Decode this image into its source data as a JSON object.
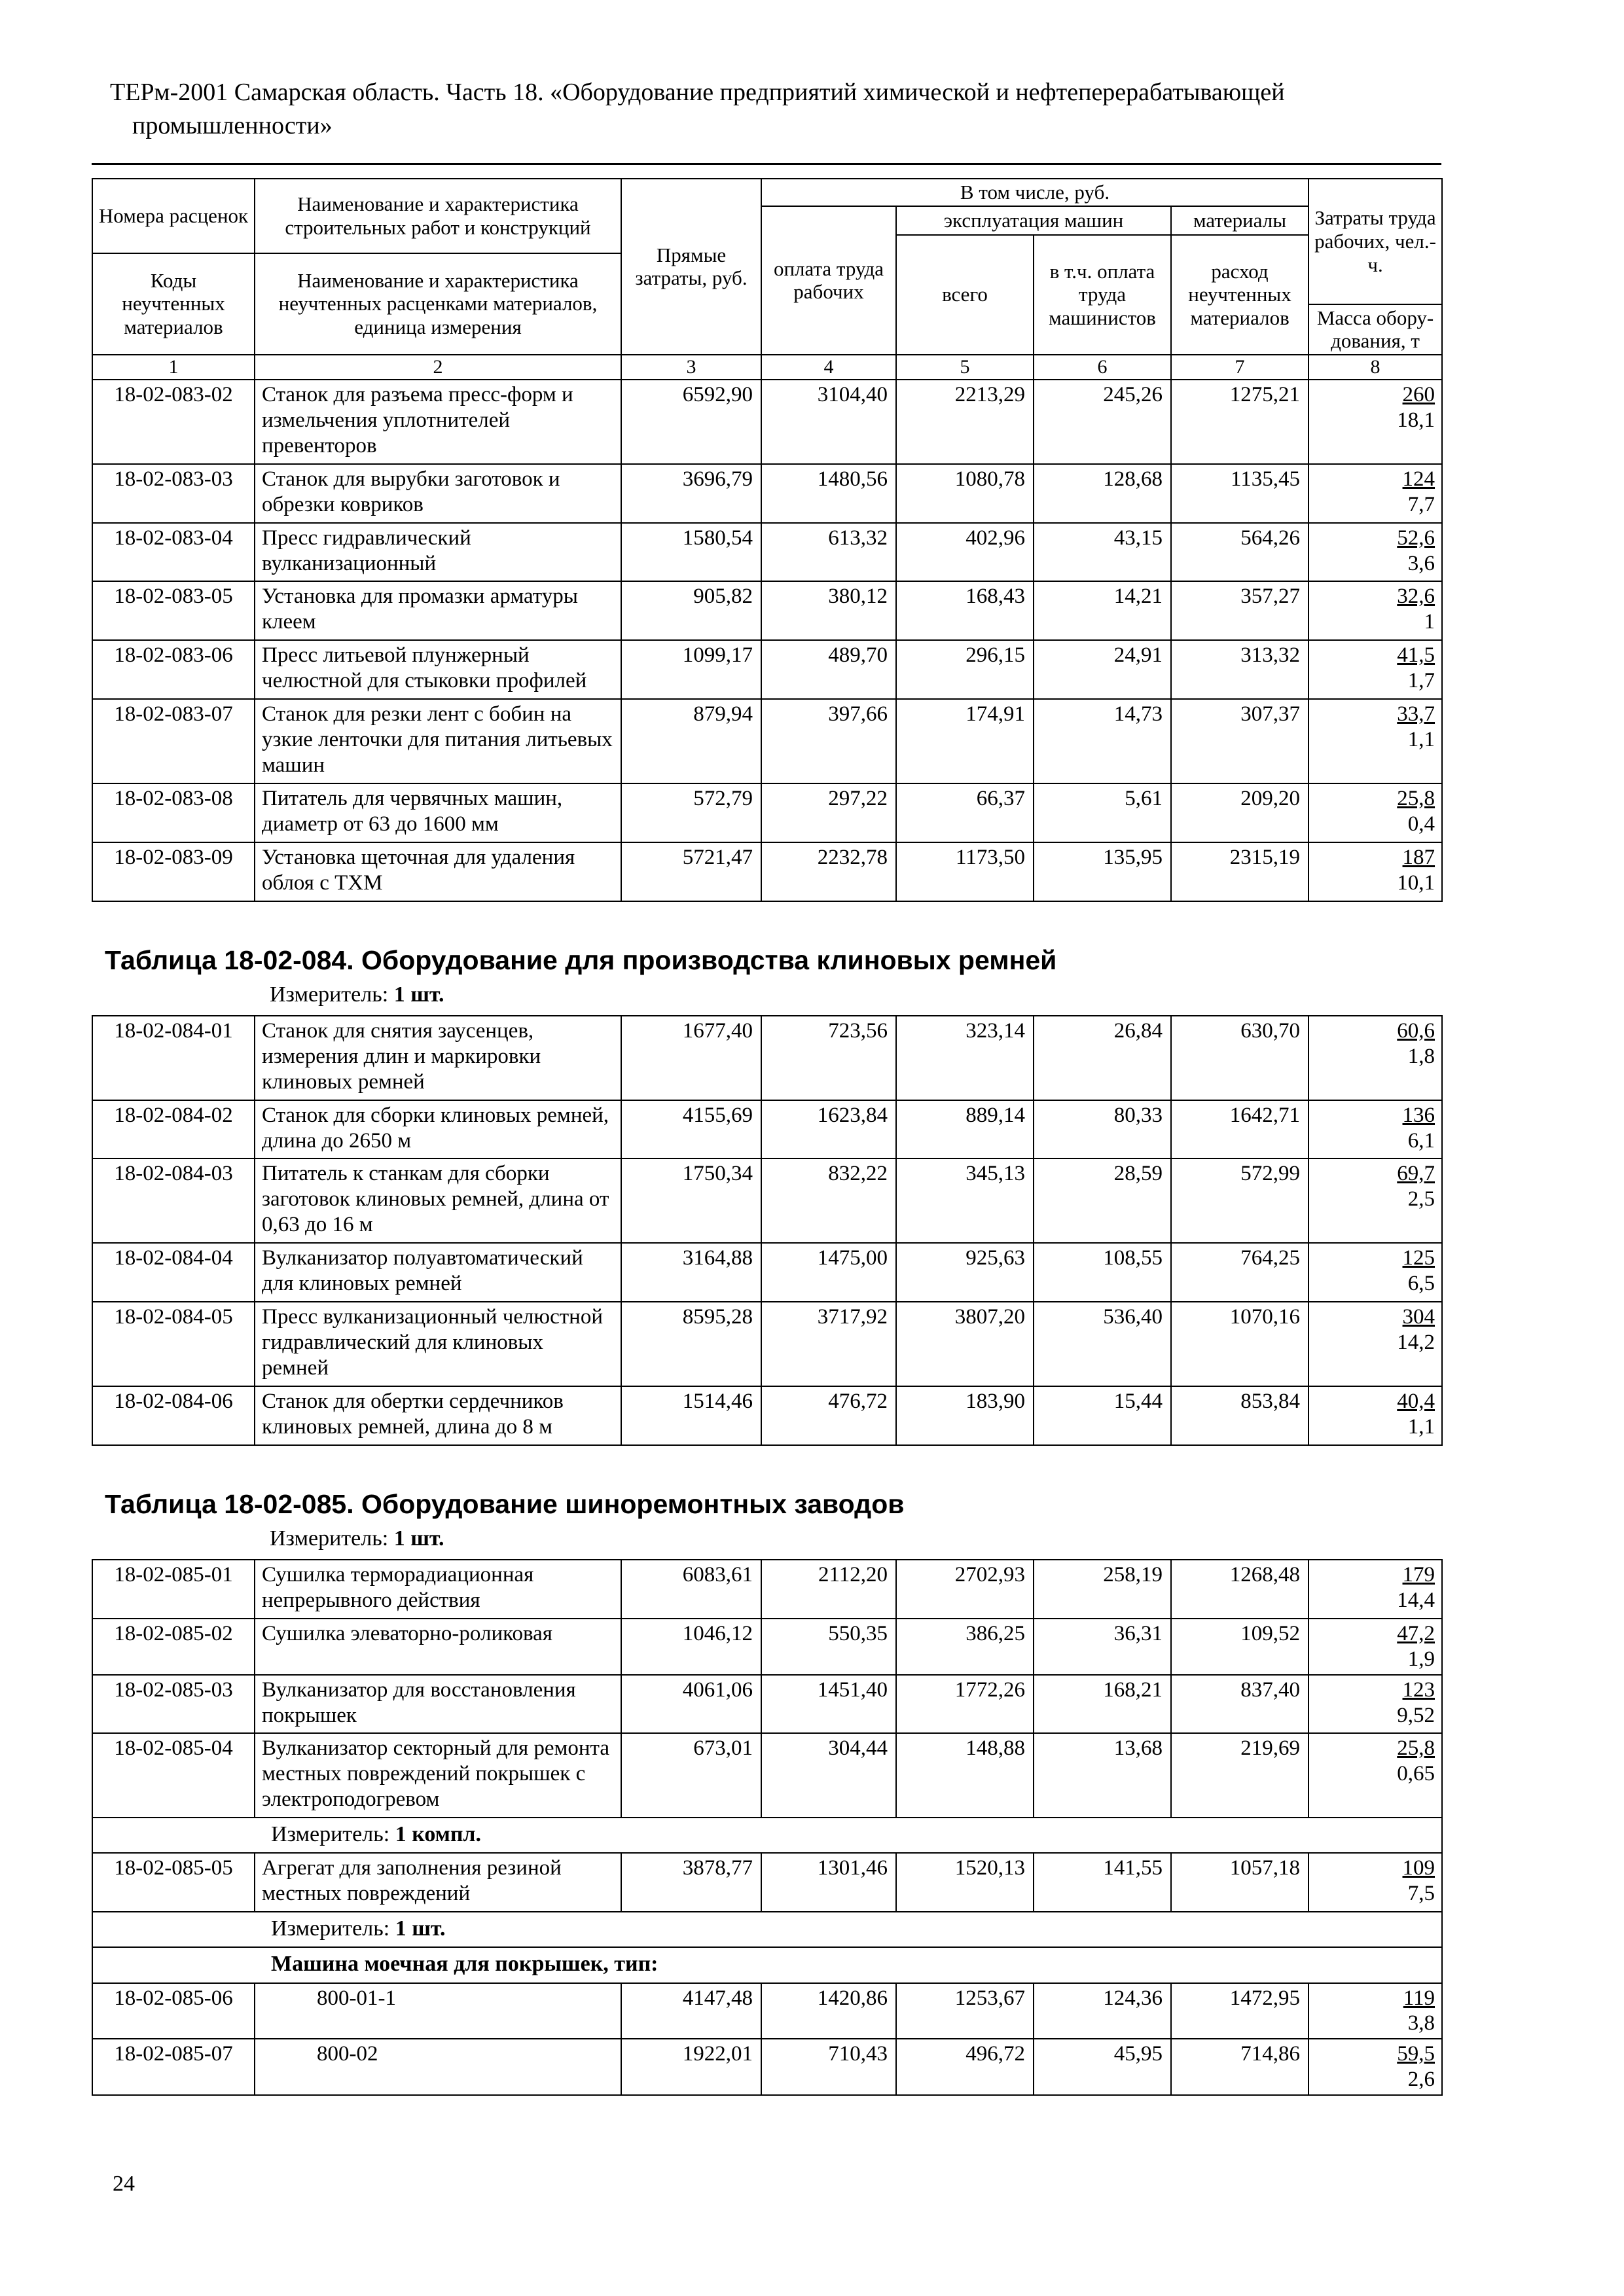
{
  "doc_header": {
    "line1": "ТЕРм-2001 Самарская область. Часть 18. «Оборудование предприятий химической и нефтеперерабатывающей",
    "line2": "промышленности»"
  },
  "page_number": "24",
  "columns": {
    "col1_top": "Номера расценок",
    "col1_bottom": "Коды неучтенных материалов",
    "col2_top": "Наименование и характеристика строительных работ и конструкций",
    "col2_bottom": "Наименование и характеристика неучтенных расценками материалов, единица измерения",
    "col3": "Прямые затраты, руб.",
    "group_total": "В том числе, руб.",
    "col4": "оплата труда рабочих",
    "group_machines": "эксплуатация машин",
    "col5": "всего",
    "col6": "в т.ч. оплата труда машинистов",
    "group_materials": "материалы",
    "col7": "расход неучтенных материалов",
    "col8_top": "Затраты труда рабочих, чел.-ч.",
    "col8_bottom": "Масса обору-дования, т",
    "numbers": [
      "1",
      "2",
      "3",
      "4",
      "5",
      "6",
      "7",
      "8"
    ]
  },
  "tables": [
    {
      "id": "t083",
      "rows": [
        {
          "type": "data",
          "code": "18-02-083-02",
          "name": "Станок для разъема пресс-форм и измельчения уплотнителей превенторов",
          "direct": "6592,90",
          "labor_pay": "3104,40",
          "machines_total": "2213,29",
          "machinists_pay": "245,26",
          "materials": "1275,21",
          "labor_hours": "260",
          "mass": "18,1"
        },
        {
          "type": "data",
          "code": "18-02-083-03",
          "name": "Станок для вырубки заготовок и обрезки ковриков",
          "direct": "3696,79",
          "labor_pay": "1480,56",
          "machines_total": "1080,78",
          "machinists_pay": "128,68",
          "materials": "1135,45",
          "labor_hours": "124",
          "mass": "7,7"
        },
        {
          "type": "data",
          "code": "18-02-083-04",
          "name": "Пресс гидравлический вулканизационный",
          "direct": "1580,54",
          "labor_pay": "613,32",
          "machines_total": "402,96",
          "machinists_pay": "43,15",
          "materials": "564,26",
          "labor_hours": "52,6",
          "mass": "3,6"
        },
        {
          "type": "data",
          "code": "18-02-083-05",
          "name": "Установка для промазки арматуры клеем",
          "direct": "905,82",
          "labor_pay": "380,12",
          "machines_total": "168,43",
          "machinists_pay": "14,21",
          "materials": "357,27",
          "labor_hours": "32,6",
          "mass": "1"
        },
        {
          "type": "data",
          "code": "18-02-083-06",
          "name": "Пресс литьевой плунжерный челюстной для стыковки профилей",
          "direct": "1099,17",
          "labor_pay": "489,70",
          "machines_total": "296,15",
          "machinists_pay": "24,91",
          "materials": "313,32",
          "labor_hours": "41,5",
          "mass": "1,7"
        },
        {
          "type": "data",
          "code": "18-02-083-07",
          "name": "Станок для резки лент с бобин на узкие ленточки для питания литьевых машин",
          "direct": "879,94",
          "labor_pay": "397,66",
          "machines_total": "174,91",
          "machinists_pay": "14,73",
          "materials": "307,37",
          "labor_hours": "33,7",
          "mass": "1,1"
        },
        {
          "type": "data",
          "code": "18-02-083-08",
          "name": "Питатель для червячных машин, диаметр от 63 до 1600 мм",
          "direct": "572,79",
          "labor_pay": "297,22",
          "machines_total": "66,37",
          "machinists_pay": "5,61",
          "materials": "209,20",
          "labor_hours": "25,8",
          "mass": "0,4"
        },
        {
          "type": "data",
          "code": "18-02-083-09",
          "name": "Установка щеточная для удаления облоя с ТХМ",
          "direct": "5721,47",
          "labor_pay": "2232,78",
          "machines_total": "1173,50",
          "machinists_pay": "135,95",
          "materials": "2315,19",
          "labor_hours": "187",
          "mass": "10,1"
        }
      ]
    },
    {
      "id": "t084",
      "title": "Таблица 18-02-084. Оборудование для производства клиновых ремней",
      "measurer_label": "Измеритель:",
      "measurer_value": "1 шт.",
      "rows": [
        {
          "type": "data",
          "code": "18-02-084-01",
          "name": "Станок для снятия заусенцев, измерения длин и маркировки клиновых ремней",
          "direct": "1677,40",
          "labor_pay": "723,56",
          "machines_total": "323,14",
          "machinists_pay": "26,84",
          "materials": "630,70",
          "labor_hours": "60,6",
          "mass": "1,8"
        },
        {
          "type": "data",
          "code": "18-02-084-02",
          "name": "Станок для сборки клиновых ремней, длина до 2650 м",
          "direct": "4155,69",
          "labor_pay": "1623,84",
          "machines_total": "889,14",
          "machinists_pay": "80,33",
          "materials": "1642,71",
          "labor_hours": "136",
          "mass": "6,1"
        },
        {
          "type": "data",
          "code": "18-02-084-03",
          "name": "Питатель к станкам для сборки заготовок клиновых ремней, длина от 0,63 до 16 м",
          "direct": "1750,34",
          "labor_pay": "832,22",
          "machines_total": "345,13",
          "machinists_pay": "28,59",
          "materials": "572,99",
          "labor_hours": "69,7",
          "mass": "2,5"
        },
        {
          "type": "data",
          "code": "18-02-084-04",
          "name": "Вулканизатор полуавтоматический для клиновых ремней",
          "direct": "3164,88",
          "labor_pay": "1475,00",
          "machines_total": "925,63",
          "machinists_pay": "108,55",
          "materials": "764,25",
          "labor_hours": "125",
          "mass": "6,5"
        },
        {
          "type": "data",
          "code": "18-02-084-05",
          "name": "Пресс вулканизационный челюстной гидравлический для клиновых ремней",
          "direct": "8595,28",
          "labor_pay": "3717,92",
          "machines_total": "3807,20",
          "machinists_pay": "536,40",
          "materials": "1070,16",
          "labor_hours": "304",
          "mass": "14,2"
        },
        {
          "type": "data",
          "code": "18-02-084-06",
          "name": "Станок для обертки сердечников клиновых ремней, длина до 8 м",
          "direct": "1514,46",
          "labor_pay": "476,72",
          "machines_total": "183,90",
          "machinists_pay": "15,44",
          "materials": "853,84",
          "labor_hours": "40,4",
          "mass": "1,1"
        }
      ]
    },
    {
      "id": "t085",
      "title": "Таблица 18-02-085. Оборудование шиноремонтных заводов",
      "measurer_label": "Измеритель:",
      "measurer_value": "1 шт.",
      "rows": [
        {
          "type": "data",
          "code": "18-02-085-01",
          "name": "Сушилка терморадиационная непрерывного действия",
          "direct": "6083,61",
          "labor_pay": "2112,20",
          "machines_total": "2702,93",
          "machinists_pay": "258,19",
          "materials": "1268,48",
          "labor_hours": "179",
          "mass": "14,4"
        },
        {
          "type": "data",
          "code": "18-02-085-02",
          "name": "Сушилка элеваторно-роликовая",
          "direct": "1046,12",
          "labor_pay": "550,35",
          "machines_total": "386,25",
          "machinists_pay": "36,31",
          "materials": "109,52",
          "labor_hours": "47,2",
          "mass": "1,9"
        },
        {
          "type": "data",
          "code": "18-02-085-03",
          "name": "Вулканизатор для восстановления покрышек",
          "direct": "4061,06",
          "labor_pay": "1451,40",
          "machines_total": "1772,26",
          "machinists_pay": "168,21",
          "materials": "837,40",
          "labor_hours": "123",
          "mass": "9,52"
        },
        {
          "type": "data",
          "code": "18-02-085-04",
          "name": "Вулканизатор секторный для ремонта местных повреждений покрышек с электроподогревом",
          "direct": "673,01",
          "labor_pay": "304,44",
          "machines_total": "148,88",
          "machinists_pay": "13,68",
          "materials": "219,69",
          "labor_hours": "25,8",
          "mass": "0,65"
        },
        {
          "type": "measurer",
          "label": "Измеритель:",
          "value": "1 компл."
        },
        {
          "type": "data",
          "code": "18-02-085-05",
          "name": "Агрегат для заполнения резиной местных повреждений",
          "direct": "3878,77",
          "labor_pay": "1301,46",
          "machines_total": "1520,13",
          "machinists_pay": "141,55",
          "materials": "1057,18",
          "labor_hours": "109",
          "mass": "7,5"
        },
        {
          "type": "measurer",
          "label": "Измеритель:",
          "value": "1 шт."
        },
        {
          "type": "subheading",
          "text": "Машина моечная для покрышек, тип:"
        },
        {
          "type": "data",
          "code": "18-02-085-06",
          "name": "800-01-1",
          "name_class": "type-name",
          "direct": "4147,48",
          "labor_pay": "1420,86",
          "machines_total": "1253,67",
          "machinists_pay": "124,36",
          "materials": "1472,95",
          "labor_hours": "119",
          "mass": "3,8"
        },
        {
          "type": "data",
          "code": "18-02-085-07",
          "name": "800-02",
          "name_class": "type-name",
          "direct": "1922,01",
          "labor_pay": "710,43",
          "machines_total": "496,72",
          "machinists_pay": "45,95",
          "materials": "714,86",
          "labor_hours": "59,5",
          "mass": "2,6"
        }
      ]
    }
  ]
}
